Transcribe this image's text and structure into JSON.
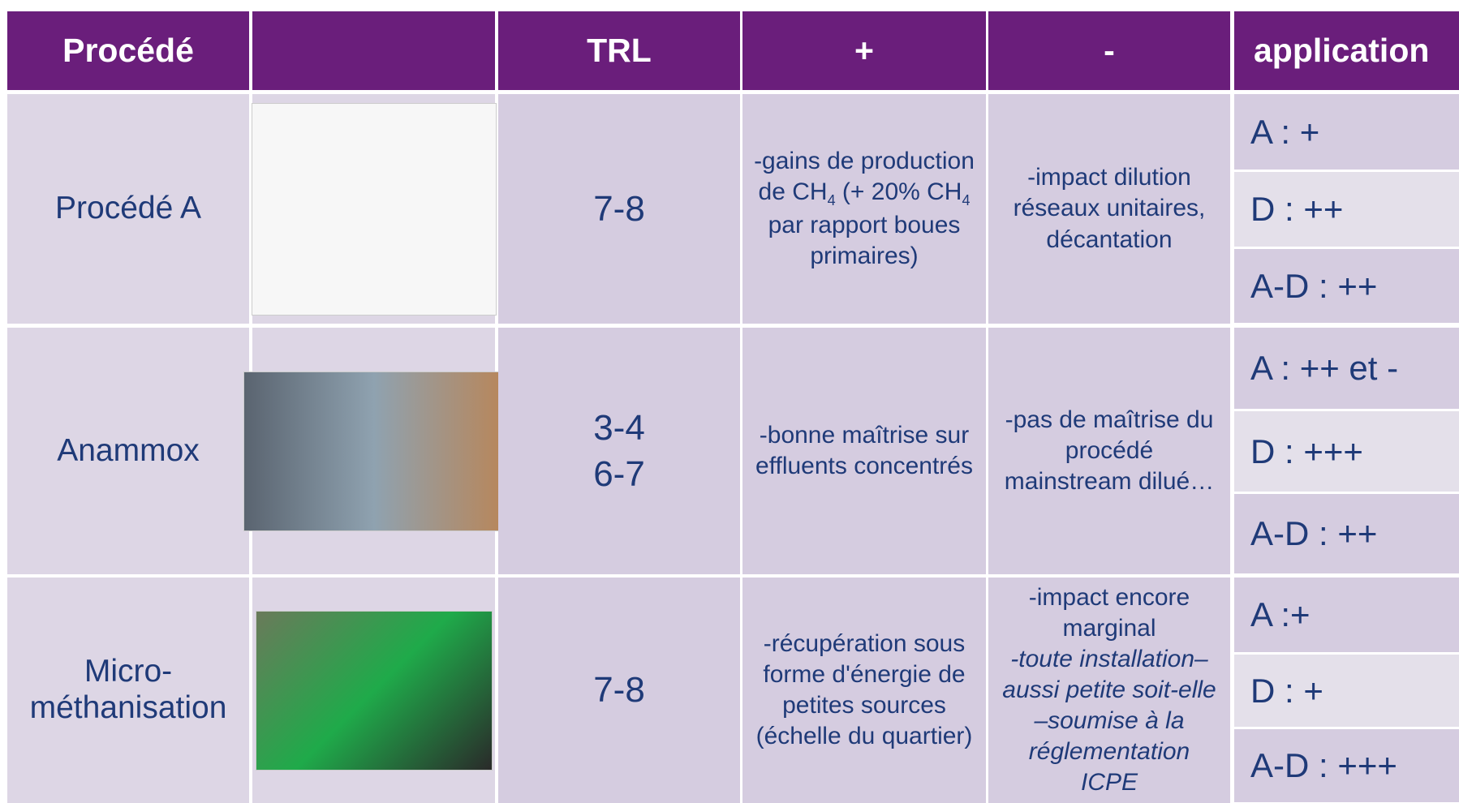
{
  "header": {
    "procede": "Procédé",
    "trl": "TRL",
    "plus": "+",
    "minus": "-",
    "application": "application"
  },
  "rows": [
    {
      "procede": "Procédé A",
      "trl": [
        "7-8"
      ],
      "plus": [
        "-gains de production de CH",
        "4",
        " (+ 20% CH",
        "4",
        " par rapport boues primaires)"
      ],
      "minus": "-impact dilution réseaux unitaires, décantation",
      "application": [
        "A : +",
        "D : ++",
        "A-D : ++"
      ]
    },
    {
      "procede": "Anammox",
      "trl": [
        "3-4",
        "6-7"
      ],
      "plus": [
        "-bonne maîtrise sur effluents concentrés"
      ],
      "minus": "-pas de maîtrise du procédé mainstream dilué…",
      "application": [
        "A : ++ et -",
        "D : +++",
        "A-D : ++"
      ]
    },
    {
      "procede": "Micro-méthanisation",
      "trl": [
        "7-8"
      ],
      "plus": [
        "-récupération sous forme d'énergie de petites sources (échelle du quartier)"
      ],
      "minus": "-impact encore marginal",
      "minus_italic": "-toute installation– aussi petite soit-elle –soumise à la réglementation ICPE",
      "application": [
        "A :+",
        "D : +",
        "A-D : +++"
      ]
    }
  ]
}
